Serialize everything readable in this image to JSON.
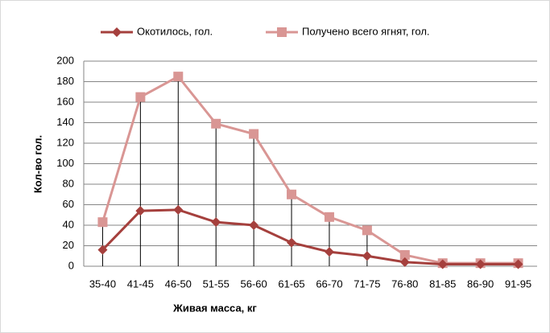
{
  "chart_data": {
    "type": "line",
    "categories": [
      "35-40",
      "41-45",
      "46-50",
      "51-55",
      "56-60",
      "61-65",
      "66-70",
      "71-75",
      "76-80",
      "81-85",
      "86-90",
      "91-95"
    ],
    "series": [
      {
        "name": "Окотилось, гол.",
        "color": "#a5403d",
        "marker": "diamond",
        "values": [
          16,
          54,
          55,
          43,
          40,
          23,
          14,
          10,
          4,
          2,
          2,
          2
        ]
      },
      {
        "name": "Получено всего ягнят, гол.",
        "color": "#d99694",
        "marker": "square",
        "values": [
          43,
          165,
          185,
          139,
          129,
          70,
          48,
          35,
          11,
          3,
          3,
          3
        ]
      }
    ],
    "xlabel": "Живая масса, кг",
    "ylabel": "Кол-во гол.",
    "ylim": [
      0,
      200
    ],
    "yticks": [
      0,
      20,
      40,
      60,
      80,
      100,
      120,
      140,
      160,
      180,
      200
    ],
    "grid": true,
    "drop_lines": true,
    "legend": "top"
  }
}
